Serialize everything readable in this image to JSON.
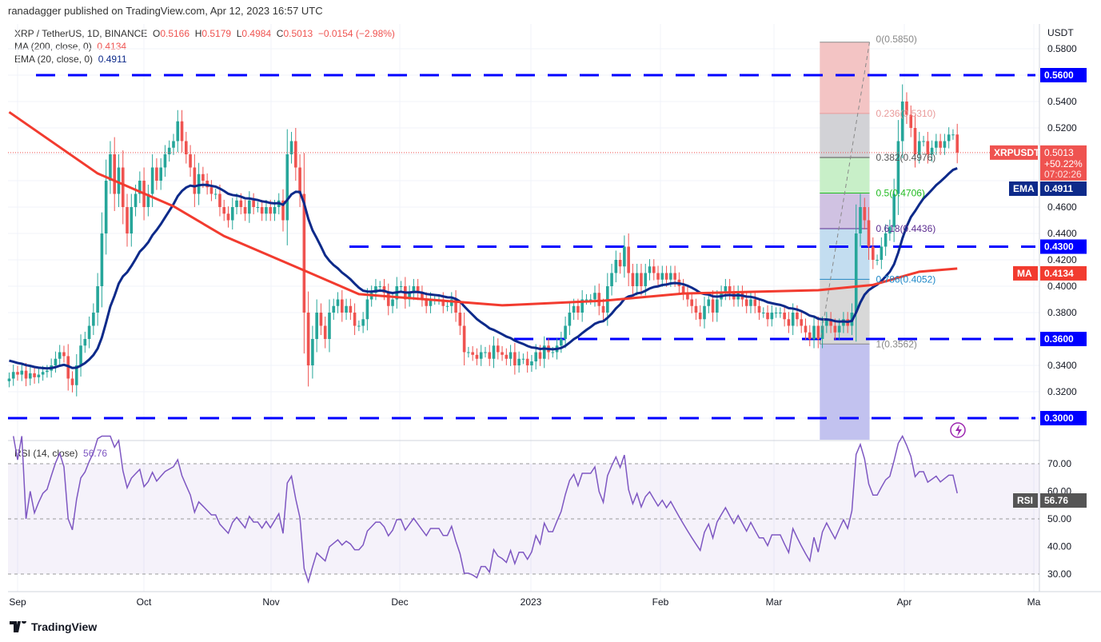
{
  "header": {
    "published": "ranadagger published on TradingView.com, Apr 12, 2023 16:57 UTC"
  },
  "legend": {
    "symbol": "XRP / TetherUS, 1D, BINANCE",
    "o_label": "O",
    "o": "0.5166",
    "h_label": "H",
    "h": "0.5179",
    "l_label": "L",
    "l": "0.4984",
    "c_label": "C",
    "c": "0.5013",
    "change": "−0.0154 (−2.98%)",
    "ma_label": "MA (200, close, 0)",
    "ma_value": "0.4134",
    "ema_label": "EMA (20, close, 0)",
    "ema_value": "0.4911",
    "rsi_label": "RSI (14, close)",
    "rsi_value": "56.76"
  },
  "colors": {
    "up": "#26a69a",
    "down": "#ef5350",
    "ema": "#0d2a8a",
    "ma": "#f23b2f",
    "level": "#0000ff",
    "rsi": "#7e57c2"
  },
  "chart_data": {
    "type": "candlestick",
    "symbol": "XRPUSDT",
    "interval": "1D",
    "start_date": "2022-08-30",
    "end_date": "2023-04-12",
    "closes": [
      0.33,
      0.335,
      0.333,
      0.336,
      0.33,
      0.334,
      0.331,
      0.333,
      0.335,
      0.336,
      0.34,
      0.345,
      0.35,
      0.347,
      0.33,
      0.325,
      0.34,
      0.355,
      0.36,
      0.37,
      0.38,
      0.4,
      0.44,
      0.48,
      0.5,
      0.47,
      0.49,
      0.46,
      0.44,
      0.46,
      0.47,
      0.48,
      0.46,
      0.47,
      0.49,
      0.48,
      0.49,
      0.5,
      0.505,
      0.51,
      0.525,
      0.51,
      0.5,
      0.49,
      0.47,
      0.485,
      0.48,
      0.475,
      0.47,
      0.47,
      0.46,
      0.455,
      0.45,
      0.46,
      0.465,
      0.46,
      0.455,
      0.465,
      0.46,
      0.46,
      0.455,
      0.46,
      0.455,
      0.46,
      0.465,
      0.45,
      0.5,
      0.51,
      0.49,
      0.47,
      0.38,
      0.34,
      0.36,
      0.38,
      0.37,
      0.36,
      0.38,
      0.385,
      0.39,
      0.38,
      0.385,
      0.38,
      0.37,
      0.37,
      0.375,
      0.39,
      0.395,
      0.4,
      0.4,
      0.395,
      0.385,
      0.39,
      0.4,
      0.4,
      0.39,
      0.395,
      0.4,
      0.395,
      0.39,
      0.385,
      0.39,
      0.39,
      0.39,
      0.385,
      0.385,
      0.39,
      0.38,
      0.37,
      0.35,
      0.35,
      0.348,
      0.345,
      0.35,
      0.35,
      0.345,
      0.355,
      0.35,
      0.348,
      0.345,
      0.35,
      0.34,
      0.345,
      0.345,
      0.34,
      0.343,
      0.35,
      0.345,
      0.355,
      0.35,
      0.35,
      0.355,
      0.36,
      0.37,
      0.38,
      0.385,
      0.38,
      0.39,
      0.39,
      0.39,
      0.395,
      0.385,
      0.38,
      0.4,
      0.41,
      0.42,
      0.415,
      0.43,
      0.41,
      0.4,
      0.41,
      0.4,
      0.41,
      0.415,
      0.41,
      0.405,
      0.41,
      0.405,
      0.41,
      0.405,
      0.4,
      0.395,
      0.39,
      0.385,
      0.38,
      0.375,
      0.385,
      0.39,
      0.38,
      0.39,
      0.395,
      0.4,
      0.395,
      0.39,
      0.395,
      0.39,
      0.385,
      0.39,
      0.385,
      0.38,
      0.38,
      0.375,
      0.38,
      0.38,
      0.38,
      0.375,
      0.37,
      0.38,
      0.375,
      0.37,
      0.365,
      0.36,
      0.37,
      0.36,
      0.37,
      0.375,
      0.37,
      0.365,
      0.37,
      0.375,
      0.37,
      0.38,
      0.44,
      0.46,
      0.45,
      0.43,
      0.42,
      0.42,
      0.43,
      0.44,
      0.445,
      0.47,
      0.51,
      0.54,
      0.53,
      0.52,
      0.5,
      0.51,
      0.51,
      0.5,
      0.505,
      0.51,
      0.505,
      0.51,
      0.515,
      0.515,
      0.5013
    ],
    "ma200": [
      [
        "2022-08-30",
        0.532
      ],
      [
        "2022-09-20",
        0.4855
      ],
      [
        "2022-10-08",
        0.4606
      ],
      [
        "2022-10-20",
        0.438
      ],
      [
        "2022-11-08",
        0.412
      ],
      [
        "2022-11-21",
        0.394
      ],
      [
        "2022-12-25",
        0.3855
      ],
      [
        "2023-01-18",
        0.389
      ],
      [
        "2023-02-06",
        0.3945
      ],
      [
        "2023-03-10",
        0.397
      ],
      [
        "2023-03-23",
        0.401
      ],
      [
        "2023-04-03",
        0.411
      ],
      [
        "2023-04-12",
        0.4134
      ]
    ],
    "price_axis": {
      "unit": "USDT",
      "ylim": [
        0.28,
        0.595
      ],
      "ticks": [
        "0.5800",
        "0.5400",
        "0.5200",
        "0.4600",
        "0.4400",
        "0.4200",
        "0.4000",
        "0.3800",
        "0.3400",
        "0.3200"
      ]
    },
    "x_ticks": [
      "Sep",
      "Oct",
      "Nov",
      "Dec",
      "2023",
      "Feb",
      "Mar",
      "Apr",
      "Ma"
    ],
    "horizontal_levels": [
      {
        "value": 0.56,
        "label": "0.5600"
      },
      {
        "value": 0.43,
        "label": "0.4300"
      },
      {
        "value": 0.36,
        "label": "0.3600"
      },
      {
        "value": 0.3,
        "label": "0.3000"
      }
    ],
    "fibonacci": {
      "from_date": "2023-03-10",
      "to_date": "2023-03-22",
      "levels": [
        {
          "ratio": "0",
          "price": 0.585,
          "label": "0(0.5850)",
          "color": "#888888",
          "fill": "#f3c4c4"
        },
        {
          "ratio": "0.236",
          "price": 0.531,
          "label": "0.236(0.5310)",
          "color": "#e99a9a",
          "fill": "#d2d2d6"
        },
        {
          "ratio": "0.382",
          "price": 0.4976,
          "label": "0.382(0.4976)",
          "color": "#555555",
          "fill": "#c8efc8"
        },
        {
          "ratio": "0.5",
          "price": 0.4706,
          "label": "0.5(0.4706)",
          "color": "#22bb22",
          "fill": "#d0c2e2"
        },
        {
          "ratio": "0.618",
          "price": 0.4436,
          "label": "0.618(0.4436)",
          "color": "#5c2d91",
          "fill": "#c3ddf0"
        },
        {
          "ratio": "0.786",
          "price": 0.4052,
          "label": "0.786(0.4052)",
          "color": "#1e88c8",
          "fill": "#d8d8d8"
        },
        {
          "ratio": "1",
          "price": 0.3562,
          "label": "1(0.3562)",
          "color": "#888888",
          "fill": "#c2c2ef"
        }
      ]
    },
    "tags": {
      "last_symbol": "XRPUSDT",
      "last_price": "0.5013",
      "last_change": "+50.22%",
      "countdown": "07:02:26",
      "ema_tag": "EMA",
      "ema": "0.4911",
      "ma_tag": "MA",
      "ma": "0.4134"
    },
    "rsi": {
      "period": 14,
      "ticks": [
        "70.00",
        "60.00",
        "50.00",
        "40.00",
        "30.00"
      ],
      "bands": [
        30,
        70
      ],
      "tag": "RSI",
      "value": "56.76"
    }
  },
  "footer": {
    "brand": "TradingView"
  }
}
